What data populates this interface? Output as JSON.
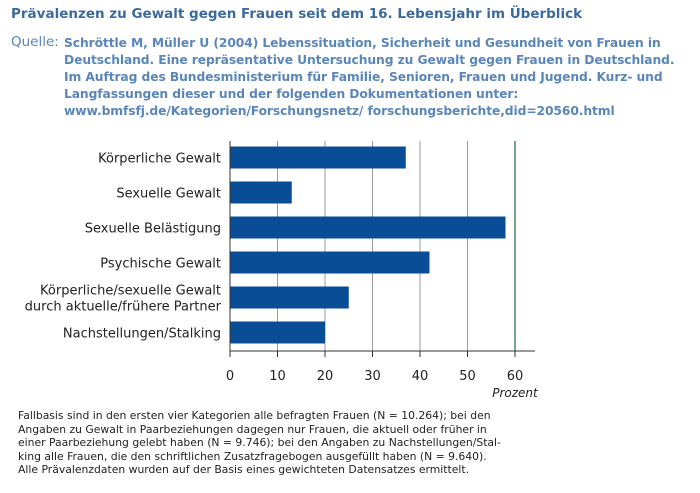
{
  "title": "Prävalenzen zu Gewalt gegen Frauen seit dem 16. Lebensjahr im Überblick",
  "source": {
    "label": "Quelle:",
    "text": "Schröttle M, Müller U (2004) Lebenssituation, Sicherheit und Gesundheit von Frauen in Deutschland. Eine repräsentative Untersuchung zu Gewalt gegen Frauen in Deutschland. Im Auftrag des Bundesministerium für Familie, Senioren, Frauen und Jugend. Kurz- und Langfassungen dieser und der folgenden Dokumentationen unter: www.bmfsfj.de/Kategorien/Forschungsnetz/ forschungsberichte,did=20560.html"
  },
  "chart_data": {
    "type": "bar",
    "orientation": "horizontal",
    "categories": [
      [
        "Körperliche Gewalt"
      ],
      [
        "Sexuelle Gewalt"
      ],
      [
        "Sexuelle Belästigung"
      ],
      [
        "Psychische Gewalt"
      ],
      [
        "Körperliche/sexuelle Gewalt",
        "durch aktuelle/frühere Partner"
      ],
      [
        "Nachstellungen/Stalking"
      ]
    ],
    "values": [
      37,
      13,
      58,
      42,
      25,
      20
    ],
    "xlim": [
      0,
      60
    ],
    "xticks": [
      "0",
      "10",
      "20",
      "30",
      "40",
      "50",
      "60"
    ],
    "xlabel": "Prozent",
    "grid": "vertical",
    "bar_color": "#0a4d97",
    "grid_color": "#1a6a3a"
  },
  "footnote": [
    "Fallbasis sind in den ersten vier Kategorien alle befragten Frauen (N = 10.264); bei den",
    "Angaben zu Gewalt in Paarbeziehungen dagegen nur Frauen, die aktuell oder früher in",
    "einer Paarbeziehung gelebt haben (N = 9.746); bei den Angaben zu Nachstellungen/Stal-",
    "king alle Frauen, die den schriftlichen Zusatzfragebogen ausgefüllt haben (N = 9.640).",
    "Alle Prävalenzdaten wurden auf der Basis eines gewichteten Datensatzes ermittelt."
  ]
}
